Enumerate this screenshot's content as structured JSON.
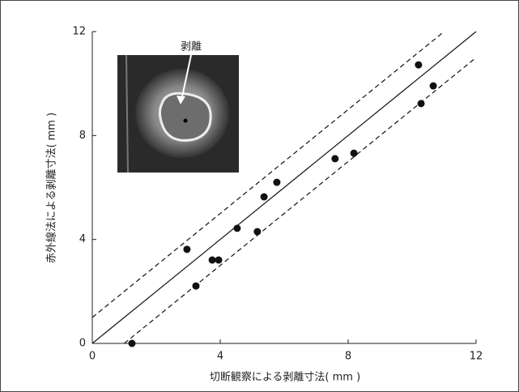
{
  "chart_data": {
    "type": "scatter",
    "xlabel": "切断観察による剥離寸法( mm )",
    "ylabel": "赤外線法による剥離寸法( mm )",
    "annotation": "剥離",
    "x": [
      1.24,
      2.96,
      3.24,
      3.75,
      3.95,
      4.53,
      5.16,
      5.37,
      5.77,
      7.59,
      8.18,
      10.2,
      10.66,
      10.28
    ],
    "values": [
      0,
      3.62,
      2.21,
      3.21,
      3.21,
      4.43,
      4.3,
      5.64,
      6.2,
      7.11,
      7.32,
      10.72,
      9.91,
      9.23
    ],
    "color": "#111111",
    "lines": [
      {
        "style": "solid",
        "x": [
          0,
          12
        ],
        "y": [
          0,
          12
        ]
      },
      {
        "style": "dashed",
        "x": [
          0,
          11
        ],
        "y": [
          1,
          12
        ]
      },
      {
        "style": "dashed",
        "x": [
          1,
          12
        ],
        "y": [
          0,
          11
        ]
      }
    ],
    "xlim": [
      0,
      12
    ],
    "ylim": [
      0,
      12
    ],
    "xticks": [
      0,
      4,
      8,
      12
    ],
    "yticks": [
      0,
      4,
      8,
      12
    ]
  }
}
